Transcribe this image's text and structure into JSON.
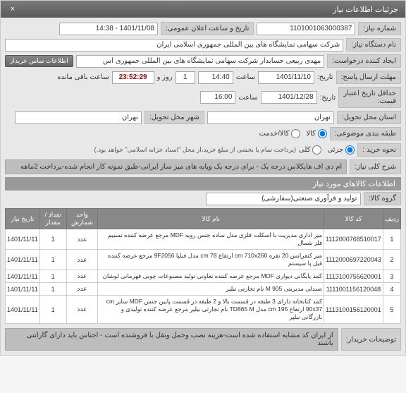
{
  "header": {
    "title": "جزئیات اطلاعات نیاز",
    "close": "×"
  },
  "need": {
    "number_label": "شماره نیاز:",
    "number": "1101001063000387",
    "announce_label": "تاریخ و ساعت اعلان عمومی:",
    "announce": "1401/11/08 - 14:38",
    "org_label": "نام دستگاه نیاز:",
    "org": "شرکت سهامی نمایشگاه های بین المللی جمهوری اسلامی ایران",
    "creator_label": "ایجاد کننده درخواست:",
    "creator": "مهدی ربیعی حسابدار شرکت سهامی نمایشگاه های بین المللی جمهوری اس",
    "buyer_btn": "اطلاعات تماس خریدار",
    "deadline_label": "مهلت ارسال پاسخ:",
    "date_label": "تاریخ:",
    "time_label": "ساعت",
    "deadline_date": "1401/11/10",
    "deadline_time": "14:40",
    "remain_days": "1",
    "remain_time": "23:52:29",
    "remain_days_label": "روز و",
    "remain_suffix": "ساعت باقی مانده",
    "validity_label": "حداقل تاریخ اعتبار",
    "price_label": "قیمت:",
    "validity_date": "1401/12/28",
    "validity_time": "16:00",
    "state_label": "استان محل تحویل:",
    "state": "تهران",
    "city_label": "شهر محل تحویل:",
    "city": "تهران",
    "topic_class_label": "طبقه بندی موضوعی:",
    "goods_radio": "کالا",
    "service_radio": "کالا/خدمت",
    "notice_label": "نحوه خرید :",
    "partial_radio": "جزئی",
    "total_radio": "کلی",
    "payment_note": "(پرداخت تمام یا بخشی از مبلغ خرید،از محل \"اسناد خزانه اسلامی\" خواهد بود.)",
    "summary_label": "شرح کلی نیاز:",
    "summary": "ام دی اف هایکلاس درجه یک - برای درجه یک وپایه های میز ساز ایرانی-طبق نمونه کار انجام شده-پرداخت 2ماهه"
  },
  "items_section": {
    "title": "اطلاعات کالاهای مورد نیاز",
    "group_label": "گروه کالا:",
    "group": "تولید و فرآوری صنعتی(سفارشی)",
    "columns": {
      "row": "ردیف",
      "code": "کد کالا",
      "name": "نام کالا",
      "unit": "واحد شمارش",
      "qty": "تعداد / مقدار",
      "date": "تاریخ نیاز"
    },
    "rows": [
      {
        "n": "1",
        "code": "1112000768510017",
        "name": "میز اداری مدیریت با اسکلت فلزی مدل ساده جنس رویه MDF مرجع عرضه کننده تسنیم فلز شمال",
        "unit": "عدد",
        "qty": "1",
        "date": "1401/11/11"
      },
      {
        "n": "2",
        "code": "1112000697220043",
        "name": "میز کنفرانس 20 نفره cm 710x260 ارتفاع cm 78 مدل فیلپا 9F2056 مرجع عرضه کننده فیل پا سیستم",
        "unit": "عدد",
        "qty": "1",
        "date": "1401/11/11"
      },
      {
        "n": "3",
        "code": "1113100755620001",
        "name": "کمد بایگانی دیواری MDF مرجع عرضه کننده تعاونی تولید مصنوعات چوبی قهرمانی لوشان",
        "unit": "عدد",
        "qty": "1",
        "date": "1401/11/11"
      },
      {
        "n": "4",
        "code": "1111001156120048",
        "name": "صندلی مدیریتی M 905 نام تجارتی نیلپر",
        "unit": "عدد",
        "qty": "1",
        "date": "1401/11/11"
      },
      {
        "n": "5",
        "code": "1113100156120001",
        "name": "کمد کتابخانه دارای 3 طبقه در قسمت بالا و 2 طبقه در قسمت پایین جنس MDF سایز cm 90x37 ارتفاع cm 195 مدل TD865 M نام تجارتی نیلپر مرجع عرضه کننده تولیدی و بازرگانی نیلپر",
        "unit": "عدد",
        "qty": "1",
        "date": "1401/11/11"
      }
    ]
  },
  "buyer_notes": {
    "label": "توضیحات خریدار:",
    "text": "از ایران کد مشابه استفاده شده است-هزینه نصب وحمل ونقل با فروشنده است - اجناس باید دارای گارانتی باشند"
  }
}
